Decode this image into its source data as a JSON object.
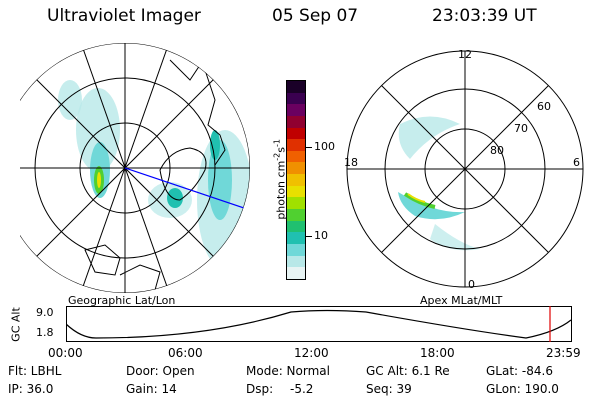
{
  "header": {
    "title": "Ultraviolet Imager",
    "date": "05 Sep 07",
    "time": "23:03:39 UT"
  },
  "colorbar": {
    "label": "photon cm",
    "exp1": "-2",
    "label_s": "s",
    "exp2": "-1",
    "tick_high": "100",
    "tick_low": "10",
    "colors": [
      "#1a0028",
      "#3a0050",
      "#6a0060",
      "#900030",
      "#c00000",
      "#e03000",
      "#f06000",
      "#f09000",
      "#f0c000",
      "#e8e000",
      "#a0e000",
      "#50d030",
      "#20c070",
      "#20c0b0",
      "#70d8d8",
      "#b8e8e8",
      "#e8f4f4"
    ]
  },
  "left_panel": {
    "caption": "Geographic Lat/Lon"
  },
  "right_panel": {
    "caption": "Apex MLat/MLT",
    "labels": {
      "top": "12",
      "bottom": "0",
      "left": "18",
      "right": "6",
      "lat60": "60",
      "lat70": "70",
      "lat80": "80"
    }
  },
  "altitude_plot": {
    "ylabel": "GC Alt",
    "ytick_top": "9.0",
    "ytick_bottom": "1.8",
    "xticks": [
      "00:00",
      "06:00",
      "12:00",
      "18:00",
      "23:59"
    ]
  },
  "footer": {
    "flt": "Flt: LBHL",
    "door": "Door: Open",
    "mode": "Mode: Normal",
    "gcalt": "GC Alt: 6.1 Re",
    "glat": "GLat: -84.6",
    "ip": "IP: 36.0",
    "gain": "Gain: 14",
    "dsp_label": "Dsp:",
    "dsp_value": "-5.2",
    "seq": "Seq: 39",
    "glon": "GLon: 190.0"
  }
}
